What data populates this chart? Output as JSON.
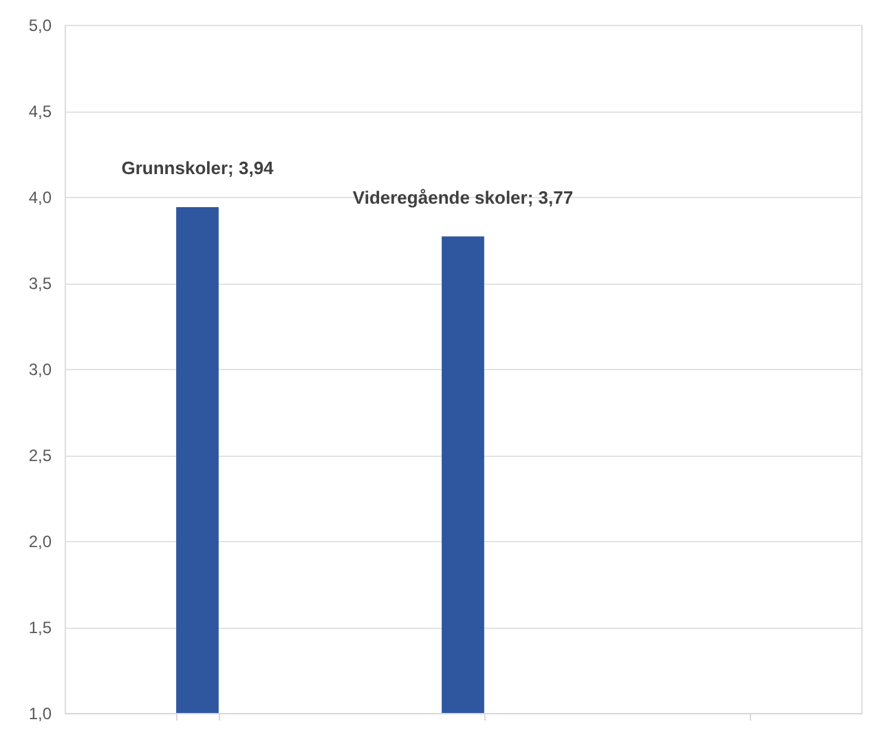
{
  "chart_data": {
    "type": "bar",
    "categories": [
      null,
      null,
      null
    ],
    "values": [
      3.94,
      3.77,
      null
    ],
    "value_labels": [
      "Grunnskoler; 3,94",
      "Videregående skoler; 3,77",
      null
    ],
    "color": "#2e57a0",
    "ylim": [
      1,
      5
    ],
    "yticks": [
      {
        "value": 1,
        "label": "1,0"
      },
      {
        "value": 1.5,
        "label": "1,5"
      },
      {
        "value": 2,
        "label": "2,0"
      },
      {
        "value": 2.5,
        "label": "2,5"
      },
      {
        "value": 3,
        "label": "3,0"
      },
      {
        "value": 3.5,
        "label": "3,5"
      },
      {
        "value": 4,
        "label": "4,0"
      },
      {
        "value": 4.5,
        "label": "4,5"
      },
      {
        "value": 5,
        "label": "5,0"
      }
    ],
    "grid": "y",
    "tick_labels": "y"
  }
}
